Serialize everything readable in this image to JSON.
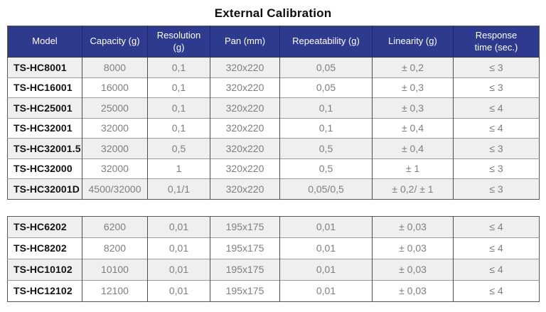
{
  "title": "External Calibration",
  "colors": {
    "header_bg": "#2d3a8e",
    "header_text": "#ffffff",
    "row_alt_bg": "#efefef",
    "row_bg": "#ffffff",
    "value_text": "#7e7e7e",
    "model_text": "#141414",
    "outer_border": "#555555"
  },
  "columns": [
    "Model",
    "Capacity (g)",
    "Resolution (g)",
    "Pan (mm)",
    "Repeatability (g)",
    "Linearity (g)",
    "Response time (sec.)"
  ],
  "tables": [
    {
      "rows": [
        [
          "TS-HC8001",
          "8000",
          "0,1",
          "320x220",
          "0,05",
          "± 0,2",
          "≤ 3"
        ],
        [
          "TS-HC16001",
          "16000",
          "0,1",
          "320x220",
          "0,05",
          "± 0,3",
          "≤ 3"
        ],
        [
          "TS-HC25001",
          "25000",
          "0,1",
          "320x220",
          "0,1",
          "± 0,3",
          "≤ 4"
        ],
        [
          "TS-HC32001",
          "32000",
          "0,1",
          "320x220",
          "0,1",
          "± 0,4",
          "≤ 4"
        ],
        [
          "TS-HC32001.5",
          "32000",
          "0,5",
          "320x220",
          "0,5",
          "± 0,4",
          "≤ 3"
        ],
        [
          "TS-HC32000",
          "32000",
          "1",
          "320x220",
          "0,5",
          "± 1",
          "≤ 3"
        ],
        [
          "TS-HC32001D",
          "4500/32000",
          "0,1/1",
          "320x220",
          "0,05/0,5",
          "± 0,2/ ± 1",
          "≤ 3"
        ]
      ]
    },
    {
      "rows": [
        [
          "TS-HC6202",
          "6200",
          "0,01",
          "195x175",
          "0,01",
          "± 0,03",
          "≤ 4"
        ],
        [
          "TS-HC8202",
          "8200",
          "0,01",
          "195x175",
          "0,01",
          "± 0,03",
          "≤ 4"
        ],
        [
          "TS-HC10102",
          "10100",
          "0,01",
          "195x175",
          "0,01",
          "± 0,03",
          "≤ 4"
        ],
        [
          "TS-HC12102",
          "12100",
          "0,01",
          "195x175",
          "0,01",
          "± 0,03",
          "≤ 4"
        ]
      ]
    }
  ]
}
